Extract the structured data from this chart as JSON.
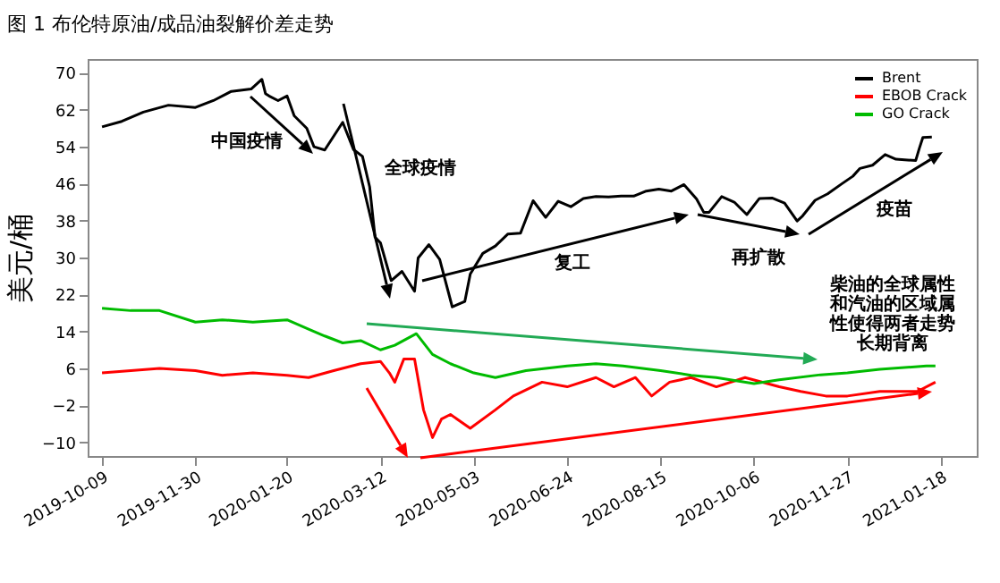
{
  "chart_data": {
    "type": "line",
    "title": "图 1 布伦特原油/成品油裂解价差走势",
    "ylabel": "美元/桶",
    "xlim": [
      "2019-10-01",
      "2021-02-07"
    ],
    "xticks": [
      "2019-10-09",
      "2019-11-30",
      "2020-01-20",
      "2020-03-12",
      "2020-05-03",
      "2020-06-24",
      "2020-08-15",
      "2020-10-06",
      "2020-11-27",
      "2021-01-18"
    ],
    "ylim": [
      -13,
      73
    ],
    "yticks": [
      -10,
      -2,
      6,
      14,
      22,
      30,
      38,
      46,
      54,
      62,
      70
    ],
    "grid": false,
    "legend": "top right",
    "line_style": "solid",
    "marker": "none",
    "annotations": [
      "中国疫情",
      "全球疫情",
      "复工",
      {
        "text": "再扩散",
        "x": "2020-11-02",
        "y": 39
      },
      "疫苗",
      "柴油的全球属性和汽油的区域属性使得两者走势长期背离"
    ],
    "series": [
      {
        "name": "Brent",
        "color": "#000000",
        "x": [
          "2019-10-09",
          "2019-10-20",
          "2019-11-01",
          "2019-11-15",
          "2019-11-30",
          "2019-12-10",
          "2019-12-20",
          "2019-12-31",
          "2020-01-06",
          "2020-01-08",
          "2020-01-10",
          "2020-01-15",
          "2020-01-20",
          "2020-01-24",
          "2020-01-31",
          "2020-02-04",
          "2020-02-10",
          "2020-02-20",
          "2020-02-26",
          "2020-03-02",
          "2020-03-06",
          "2020-03-09",
          "2020-03-12",
          "2020-03-18",
          "2020-03-24",
          "2020-03-31",
          "2020-04-02",
          "2020-04-08",
          "2020-04-14",
          "2020-04-21",
          "2020-04-28",
          "2020-05-01",
          "2020-05-08",
          "2020-05-15",
          "2020-05-22",
          "2020-05-29",
          "2020-06-05",
          "2020-06-12",
          "2020-06-19",
          "2020-06-26",
          "2020-07-03",
          "2020-07-10",
          "2020-07-17",
          "2020-07-24",
          "2020-07-31",
          "2020-08-07",
          "2020-08-14",
          "2020-08-21",
          "2020-08-28",
          "2020-09-04",
          "2020-09-08",
          "2020-09-11",
          "2020-09-18",
          "2020-09-25",
          "2020-10-02",
          "2020-10-09",
          "2020-10-16",
          "2020-10-23",
          "2020-10-30",
          "2020-11-02",
          "2020-11-09",
          "2020-11-16",
          "2020-11-24",
          "2020-11-30",
          "2020-12-04",
          "2020-12-11",
          "2020-12-18",
          "2020-12-24",
          "2021-01-04",
          "2021-01-06",
          "2021-01-08",
          "2021-01-13"
        ],
        "values": [
          58.3,
          59.5,
          61.5,
          63,
          62.5,
          64,
          66,
          66.5,
          68.6,
          65.5,
          65,
          64,
          65,
          60.7,
          58,
          54,
          53.3,
          59.3,
          53.4,
          51.9,
          45.3,
          34.4,
          33.2,
          25,
          27,
          22.7,
          29.9,
          32.8,
          29.6,
          19.3,
          20.5,
          26.4,
          30.9,
          32.5,
          35.1,
          35.3,
          42.3,
          38.7,
          42.2,
          41,
          42.8,
          43.2,
          43.1,
          43.3,
          43.3,
          44.4,
          44.8,
          44.4,
          45.8,
          42.7,
          39.8,
          39.8,
          43.2,
          42,
          39.3,
          42.8,
          42.9,
          41.8,
          37.9,
          39,
          42.4,
          43.8,
          46,
          47.6,
          49.3,
          50,
          52.3,
          51.3,
          51,
          53.6,
          56,
          56.1
        ]
      },
      {
        "name": "EBOB Crack",
        "color": "#ff0000",
        "x": [
          "2019-10-09",
          "2019-10-25",
          "2019-11-10",
          "2019-11-30",
          "2019-12-15",
          "2020-01-01",
          "2020-01-20",
          "2020-02-01",
          "2020-02-15",
          "2020-03-01",
          "2020-03-12",
          "2020-03-17",
          "2020-03-20",
          "2020-03-25",
          "2020-03-31",
          "2020-04-05",
          "2020-04-10",
          "2020-04-15",
          "2020-04-20",
          "2020-05-01",
          "2020-05-15",
          "2020-05-25",
          "2020-06-10",
          "2020-06-24",
          "2020-07-10",
          "2020-07-20",
          "2020-08-01",
          "2020-08-10",
          "2020-08-20",
          "2020-09-01",
          "2020-09-15",
          "2020-10-01",
          "2020-10-20",
          "2020-11-01",
          "2020-11-15",
          "2020-11-27",
          "2020-12-15",
          "2021-01-05",
          "2021-01-15"
        ],
        "values": [
          5,
          5.5,
          6,
          5.5,
          4.5,
          5,
          4.5,
          4,
          5.5,
          7,
          7.5,
          5,
          3,
          8,
          8,
          -3,
          -9,
          -5,
          -4,
          -7,
          -3,
          0,
          3,
          2,
          4,
          2,
          4,
          0,
          3,
          4,
          2,
          4,
          2,
          1,
          0,
          0,
          1,
          1,
          3
        ]
      },
      {
        "name": "GO Crack",
        "color": "#00bb00",
        "x": [
          "2019-10-09",
          "2019-10-25",
          "2019-11-10",
          "2019-11-30",
          "2019-12-15",
          "2020-01-01",
          "2020-01-20",
          "2020-02-01",
          "2020-02-10",
          "2020-02-20",
          "2020-03-01",
          "2020-03-12",
          "2020-03-20",
          "2020-04-01",
          "2020-04-10",
          "2020-04-20",
          "2020-05-03",
          "2020-05-15",
          "2020-06-01",
          "2020-06-24",
          "2020-07-10",
          "2020-07-25",
          "2020-08-15",
          "2020-09-01",
          "2020-09-15",
          "2020-10-06",
          "2020-10-20",
          "2020-11-12",
          "2020-11-27",
          "2020-12-15",
          "2021-01-10",
          "2021-01-15"
        ],
        "values": [
          19,
          18.5,
          18.5,
          16,
          16.5,
          16,
          16.5,
          14.5,
          13,
          11.5,
          12,
          10,
          11,
          13.5,
          9,
          7,
          5,
          4,
          5.5,
          6.5,
          7,
          6.5,
          5.5,
          4.5,
          4,
          2.7,
          3.5,
          4.6,
          5,
          5.8,
          6.5,
          6.5
        ]
      }
    ]
  }
}
